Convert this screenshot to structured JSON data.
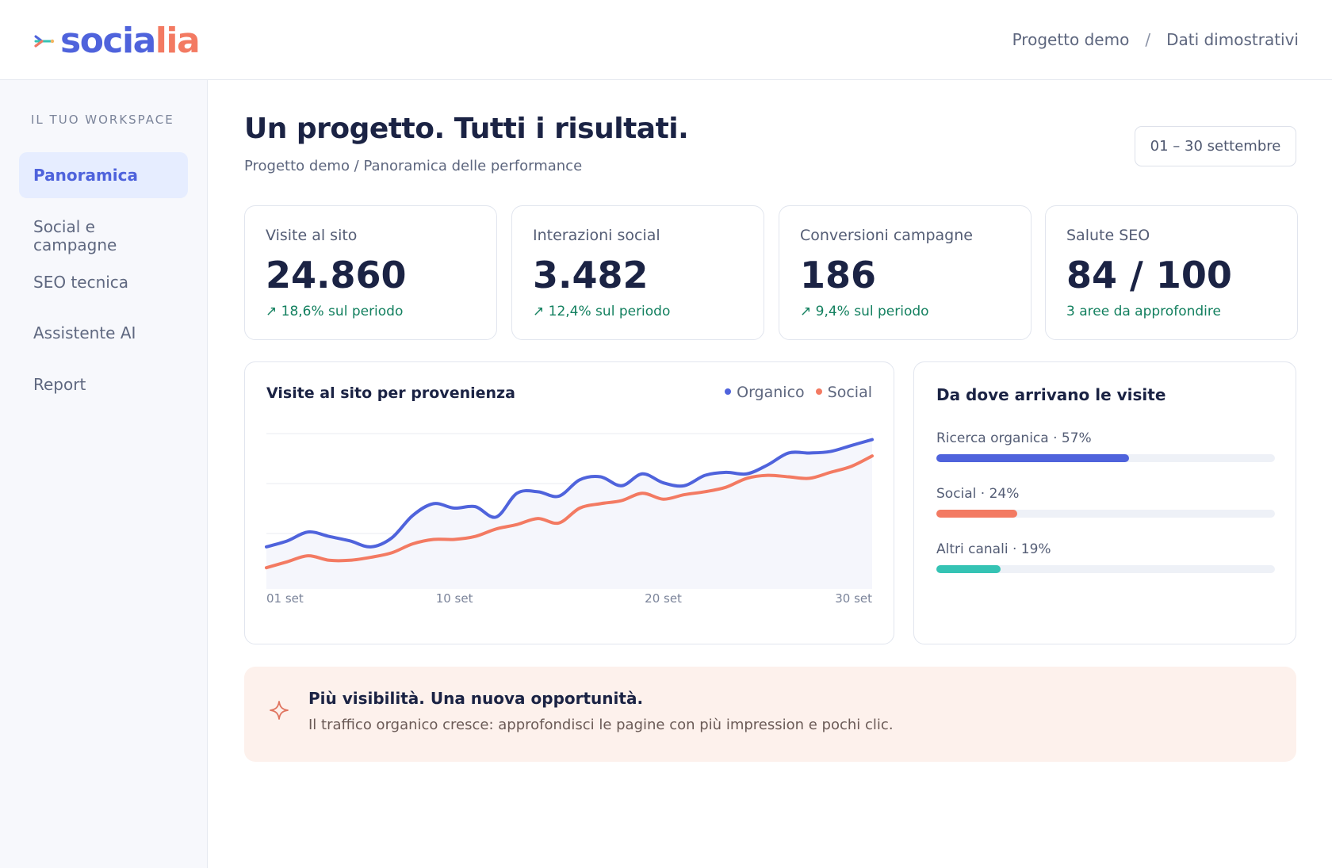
{
  "brand": {
    "part1": "socia",
    "part2": "lia"
  },
  "breadcrumb": {
    "project": "Progetto demo",
    "separator": "/",
    "dataset": "Dati dimostrativi"
  },
  "sidebar": {
    "section_label": "IL TUO WORKSPACE",
    "items": [
      {
        "label": "Panoramica",
        "active": true
      },
      {
        "label": "Social e campagne",
        "active": false
      },
      {
        "label": "SEO tecnica",
        "active": false
      },
      {
        "label": "Assistente AI",
        "active": false
      },
      {
        "label": "Report",
        "active": false
      }
    ]
  },
  "page": {
    "title": "Un progetto. Tutti i risultati.",
    "subtitle": "Progetto demo / Panoramica delle performance",
    "date_range": "01 – 30 settembre"
  },
  "kpis": [
    {
      "label": "Visite al sito",
      "value": "24.860",
      "delta": "↗ 18,6% sul periodo"
    },
    {
      "label": "Interazioni social",
      "value": "3.482",
      "delta": "↗ 12,4% sul periodo"
    },
    {
      "label": "Conversioni campagne",
      "value": "186",
      "delta": "↗ 9,4% sul periodo"
    },
    {
      "label": "Salute SEO",
      "value": "84 / 100",
      "delta": "3 aree da approfondire"
    }
  ],
  "chart": {
    "title": "Visite al sito per provenienza",
    "legend": [
      {
        "name": "Organico",
        "color": "#4f63dc"
      },
      {
        "name": "Social",
        "color": "#f37a62"
      }
    ]
  },
  "chart_data": {
    "type": "line",
    "title": "Visite al sito per provenienza",
    "x": [
      1,
      2,
      3,
      4,
      5,
      6,
      7,
      8,
      9,
      10,
      11,
      12,
      13,
      14,
      15,
      16,
      17,
      18,
      19,
      20,
      21,
      22,
      23,
      24,
      25,
      26,
      27,
      28,
      29,
      30
    ],
    "x_tick_labels": [
      "01 set",
      "10 set",
      "20 set",
      "30 set"
    ],
    "x_ticks": [
      1,
      10,
      20,
      30
    ],
    "ylim": [
      0,
      100
    ],
    "grid": true,
    "legend_position": "top-right",
    "series": [
      {
        "name": "Organico",
        "color": "#4f63dc",
        "values": [
          24,
          28,
          34,
          31,
          28,
          24,
          30,
          45,
          53,
          50,
          51,
          44,
          60,
          61,
          58,
          69,
          71,
          65,
          73,
          67,
          65,
          72,
          74,
          73,
          79,
          87,
          87,
          88,
          92,
          96
        ]
      },
      {
        "name": "Social",
        "color": "#f37a62",
        "values": [
          10,
          14,
          18,
          15,
          15,
          17,
          20,
          26,
          29,
          29,
          31,
          36,
          39,
          43,
          40,
          50,
          53,
          55,
          60,
          56,
          59,
          61,
          64,
          70,
          72,
          71,
          70,
          74,
          78,
          85
        ]
      }
    ]
  },
  "sources": {
    "title": "Da dove arrivano le visite",
    "items": [
      {
        "label": "Ricerca organica · 57%",
        "fraction": 0.57,
        "color": "#4f63dc"
      },
      {
        "label": "Social · 24%",
        "fraction": 0.24,
        "color": "#f37a62"
      },
      {
        "label": "Altri canali · 19%",
        "fraction": 0.19,
        "color": "#35c3b4"
      }
    ]
  },
  "banner": {
    "title": "Più visibilità. Una nuova opportunità.",
    "text": "Il traffico organico cresce: approfondisci le pagine con più impression e pochi clic.",
    "icon": "sparkle-icon"
  }
}
